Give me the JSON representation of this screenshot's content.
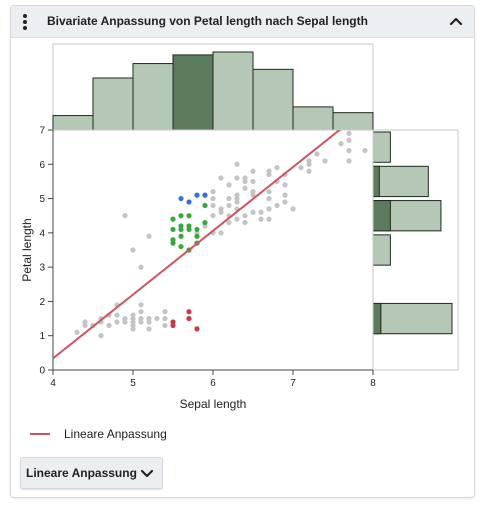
{
  "header": {
    "title": "Bivariate Anpassung von Petal length nach Sepal length"
  },
  "legend": {
    "fit_label": "Lineare Anpassung"
  },
  "fit_button": {
    "label": "Lineare Anpassung"
  },
  "colors": {
    "gray": "#c4c4c4",
    "green": "#3aa640",
    "blue": "#3a6fd8",
    "red": "#c93a48",
    "fit_line": "#d3525f",
    "hist_fill": "#b5c8b6",
    "hist_selected": "#5c7b5e"
  },
  "chart_data": {
    "type": "scatter",
    "title": "",
    "xlabel": "Sepal length",
    "ylabel": "Petal length",
    "xlim": [
      4,
      8
    ],
    "ylim": [
      0,
      7
    ],
    "x_ticks": [
      "4",
      "5",
      "6",
      "7",
      "8"
    ],
    "y_ticks": [
      "0",
      "1",
      "2",
      "3",
      "4",
      "5",
      "6",
      "7"
    ],
    "fit": {
      "name": "Lineare Anpassung",
      "slope": 1.86,
      "intercept": -7.1
    },
    "points": [
      {
        "x": 4.3,
        "y": 1.1,
        "g": "gray"
      },
      {
        "x": 4.4,
        "y": 1.3,
        "g": "gray"
      },
      {
        "x": 4.4,
        "y": 1.4,
        "g": "gray"
      },
      {
        "x": 4.5,
        "y": 1.3,
        "g": "gray"
      },
      {
        "x": 4.6,
        "y": 1.0,
        "g": "gray"
      },
      {
        "x": 4.6,
        "y": 1.4,
        "g": "gray"
      },
      {
        "x": 4.6,
        "y": 1.5,
        "g": "gray"
      },
      {
        "x": 4.7,
        "y": 1.3,
        "g": "gray"
      },
      {
        "x": 4.7,
        "y": 1.6,
        "g": "gray"
      },
      {
        "x": 4.8,
        "y": 1.4,
        "g": "gray"
      },
      {
        "x": 4.8,
        "y": 1.6,
        "g": "gray"
      },
      {
        "x": 4.8,
        "y": 1.9,
        "g": "gray"
      },
      {
        "x": 4.9,
        "y": 1.4,
        "g": "gray"
      },
      {
        "x": 4.9,
        "y": 1.5,
        "g": "gray"
      },
      {
        "x": 4.9,
        "y": 4.5,
        "g": "gray"
      },
      {
        "x": 5.0,
        "y": 1.2,
        "g": "gray"
      },
      {
        "x": 5.0,
        "y": 1.3,
        "g": "gray"
      },
      {
        "x": 5.0,
        "y": 1.4,
        "g": "gray"
      },
      {
        "x": 5.0,
        "y": 1.5,
        "g": "gray"
      },
      {
        "x": 5.0,
        "y": 1.6,
        "g": "gray"
      },
      {
        "x": 5.0,
        "y": 3.5,
        "g": "gray"
      },
      {
        "x": 5.1,
        "y": 1.4,
        "g": "gray"
      },
      {
        "x": 5.1,
        "y": 1.5,
        "g": "gray"
      },
      {
        "x": 5.1,
        "y": 1.7,
        "g": "gray"
      },
      {
        "x": 5.1,
        "y": 1.9,
        "g": "gray"
      },
      {
        "x": 5.1,
        "y": 3.0,
        "g": "gray"
      },
      {
        "x": 5.2,
        "y": 1.4,
        "g": "gray"
      },
      {
        "x": 5.2,
        "y": 1.5,
        "g": "gray"
      },
      {
        "x": 5.2,
        "y": 3.9,
        "g": "gray"
      },
      {
        "x": 5.3,
        "y": 1.5,
        "g": "gray"
      },
      {
        "x": 5.4,
        "y": 1.3,
        "g": "gray"
      },
      {
        "x": 5.4,
        "y": 1.5,
        "g": "gray"
      },
      {
        "x": 5.4,
        "y": 1.7,
        "g": "gray"
      },
      {
        "x": 5.5,
        "y": 1.3,
        "g": "gray"
      },
      {
        "x": 5.7,
        "y": 1.5,
        "g": "gray"
      },
      {
        "x": 5.2,
        "y": 1.2,
        "g": "gray"
      },
      {
        "x": 5.8,
        "y": 4.0,
        "g": "gray"
      },
      {
        "x": 5.8,
        "y": 3.9,
        "g": "gray"
      },
      {
        "x": 5.9,
        "y": 4.2,
        "g": "gray"
      },
      {
        "x": 5.9,
        "y": 4.8,
        "g": "gray"
      },
      {
        "x": 5.9,
        "y": 5.1,
        "g": "gray"
      },
      {
        "x": 6.0,
        "y": 4.0,
        "g": "gray"
      },
      {
        "x": 6.0,
        "y": 4.5,
        "g": "gray"
      },
      {
        "x": 6.0,
        "y": 4.8,
        "g": "gray"
      },
      {
        "x": 6.0,
        "y": 5.0,
        "g": "gray"
      },
      {
        "x": 6.1,
        "y": 4.0,
        "g": "gray"
      },
      {
        "x": 6.1,
        "y": 4.6,
        "g": "gray"
      },
      {
        "x": 6.1,
        "y": 4.7,
        "g": "gray"
      },
      {
        "x": 6.1,
        "y": 5.6,
        "g": "gray"
      },
      {
        "x": 6.2,
        "y": 4.3,
        "g": "gray"
      },
      {
        "x": 6.2,
        "y": 4.5,
        "g": "gray"
      },
      {
        "x": 6.2,
        "y": 4.8,
        "g": "gray"
      },
      {
        "x": 6.2,
        "y": 5.4,
        "g": "gray"
      },
      {
        "x": 6.3,
        "y": 4.4,
        "g": "gray"
      },
      {
        "x": 6.3,
        "y": 4.7,
        "g": "gray"
      },
      {
        "x": 6.3,
        "y": 4.9,
        "g": "gray"
      },
      {
        "x": 6.3,
        "y": 5.0,
        "g": "gray"
      },
      {
        "x": 6.3,
        "y": 5.1,
        "g": "gray"
      },
      {
        "x": 6.3,
        "y": 5.6,
        "g": "gray"
      },
      {
        "x": 6.3,
        "y": 6.0,
        "g": "gray"
      },
      {
        "x": 6.4,
        "y": 4.3,
        "g": "gray"
      },
      {
        "x": 6.4,
        "y": 4.5,
        "g": "gray"
      },
      {
        "x": 6.4,
        "y": 5.3,
        "g": "gray"
      },
      {
        "x": 6.4,
        "y": 5.5,
        "g": "gray"
      },
      {
        "x": 6.4,
        "y": 5.6,
        "g": "gray"
      },
      {
        "x": 6.5,
        "y": 4.6,
        "g": "gray"
      },
      {
        "x": 6.5,
        "y": 5.1,
        "g": "gray"
      },
      {
        "x": 6.5,
        "y": 5.2,
        "g": "gray"
      },
      {
        "x": 6.5,
        "y": 5.5,
        "g": "gray"
      },
      {
        "x": 6.5,
        "y": 5.8,
        "g": "gray"
      },
      {
        "x": 6.6,
        "y": 4.4,
        "g": "gray"
      },
      {
        "x": 6.6,
        "y": 4.6,
        "g": "gray"
      },
      {
        "x": 6.7,
        "y": 4.4,
        "g": "gray"
      },
      {
        "x": 6.7,
        "y": 4.7,
        "g": "gray"
      },
      {
        "x": 6.7,
        "y": 5.0,
        "g": "gray"
      },
      {
        "x": 6.7,
        "y": 5.2,
        "g": "gray"
      },
      {
        "x": 6.7,
        "y": 5.7,
        "g": "gray"
      },
      {
        "x": 6.7,
        "y": 5.8,
        "g": "gray"
      },
      {
        "x": 6.8,
        "y": 4.8,
        "g": "gray"
      },
      {
        "x": 6.8,
        "y": 5.5,
        "g": "gray"
      },
      {
        "x": 6.8,
        "y": 5.9,
        "g": "gray"
      },
      {
        "x": 6.9,
        "y": 4.9,
        "g": "gray"
      },
      {
        "x": 6.9,
        "y": 5.1,
        "g": "gray"
      },
      {
        "x": 6.9,
        "y": 5.4,
        "g": "gray"
      },
      {
        "x": 6.9,
        "y": 5.7,
        "g": "gray"
      },
      {
        "x": 7.0,
        "y": 4.7,
        "g": "gray"
      },
      {
        "x": 7.1,
        "y": 5.9,
        "g": "gray"
      },
      {
        "x": 7.2,
        "y": 5.8,
        "g": "gray"
      },
      {
        "x": 7.2,
        "y": 6.0,
        "g": "gray"
      },
      {
        "x": 7.2,
        "y": 6.1,
        "g": "gray"
      },
      {
        "x": 7.3,
        "y": 6.3,
        "g": "gray"
      },
      {
        "x": 7.4,
        "y": 6.1,
        "g": "gray"
      },
      {
        "x": 7.6,
        "y": 6.6,
        "g": "gray"
      },
      {
        "x": 7.7,
        "y": 6.1,
        "g": "gray"
      },
      {
        "x": 7.7,
        "y": 6.4,
        "g": "gray"
      },
      {
        "x": 7.7,
        "y": 6.7,
        "g": "gray"
      },
      {
        "x": 7.7,
        "y": 6.9,
        "g": "gray"
      },
      {
        "x": 7.9,
        "y": 6.4,
        "g": "gray"
      },
      {
        "x": 6.0,
        "y": 5.2,
        "g": "gray"
      },
      {
        "x": 6.2,
        "y": 5.0,
        "g": "gray"
      },
      {
        "x": 5.5,
        "y": 4.1,
        "g": "green"
      },
      {
        "x": 5.5,
        "y": 3.8,
        "g": "green"
      },
      {
        "x": 5.5,
        "y": 4.4,
        "g": "green"
      },
      {
        "x": 5.5,
        "y": 3.7,
        "g": "green"
      },
      {
        "x": 5.6,
        "y": 4.5,
        "g": "green"
      },
      {
        "x": 5.6,
        "y": 4.2,
        "g": "green"
      },
      {
        "x": 5.6,
        "y": 4.1,
        "g": "green"
      },
      {
        "x": 5.6,
        "y": 3.9,
        "g": "green"
      },
      {
        "x": 5.6,
        "y": 3.6,
        "g": "green"
      },
      {
        "x": 5.7,
        "y": 4.2,
        "g": "green"
      },
      {
        "x": 5.7,
        "y": 4.1,
        "g": "green"
      },
      {
        "x": 5.7,
        "y": 3.5,
        "g": "green"
      },
      {
        "x": 5.7,
        "y": 4.5,
        "g": "green"
      },
      {
        "x": 5.8,
        "y": 4.1,
        "g": "green"
      },
      {
        "x": 5.8,
        "y": 3.9,
        "g": "green"
      },
      {
        "x": 5.8,
        "y": 3.7,
        "g": "green"
      },
      {
        "x": 5.9,
        "y": 4.3,
        "g": "green"
      },
      {
        "x": 5.9,
        "y": 4.8,
        "g": "green"
      },
      {
        "x": 5.7,
        "y": 4.9,
        "g": "blue"
      },
      {
        "x": 5.8,
        "y": 5.1,
        "g": "blue"
      },
      {
        "x": 5.9,
        "y": 5.1,
        "g": "blue"
      },
      {
        "x": 5.6,
        "y": 5.0,
        "g": "blue"
      },
      {
        "x": 5.5,
        "y": 1.3,
        "g": "red"
      },
      {
        "x": 5.5,
        "y": 1.4,
        "g": "red"
      },
      {
        "x": 5.7,
        "y": 1.5,
        "g": "red"
      },
      {
        "x": 5.7,
        "y": 1.7,
        "g": "red"
      },
      {
        "x": 5.8,
        "y": 1.2,
        "g": "red"
      }
    ],
    "x_histogram": {
      "bin_edges": [
        4,
        4.5,
        5,
        5.5,
        6,
        6.5,
        7,
        7.5,
        8
      ],
      "counts": [
        5,
        18,
        23,
        26,
        27,
        21,
        8,
        6
      ],
      "selected_bin": 3
    },
    "y_histogram": {
      "bin_edges": [
        1,
        2,
        3,
        4,
        5,
        6,
        7
      ],
      "counts": [
        50,
        0,
        11,
        43,
        35,
        11
      ],
      "selected_counts": [
        5,
        0,
        0,
        11,
        4,
        0
      ]
    }
  }
}
